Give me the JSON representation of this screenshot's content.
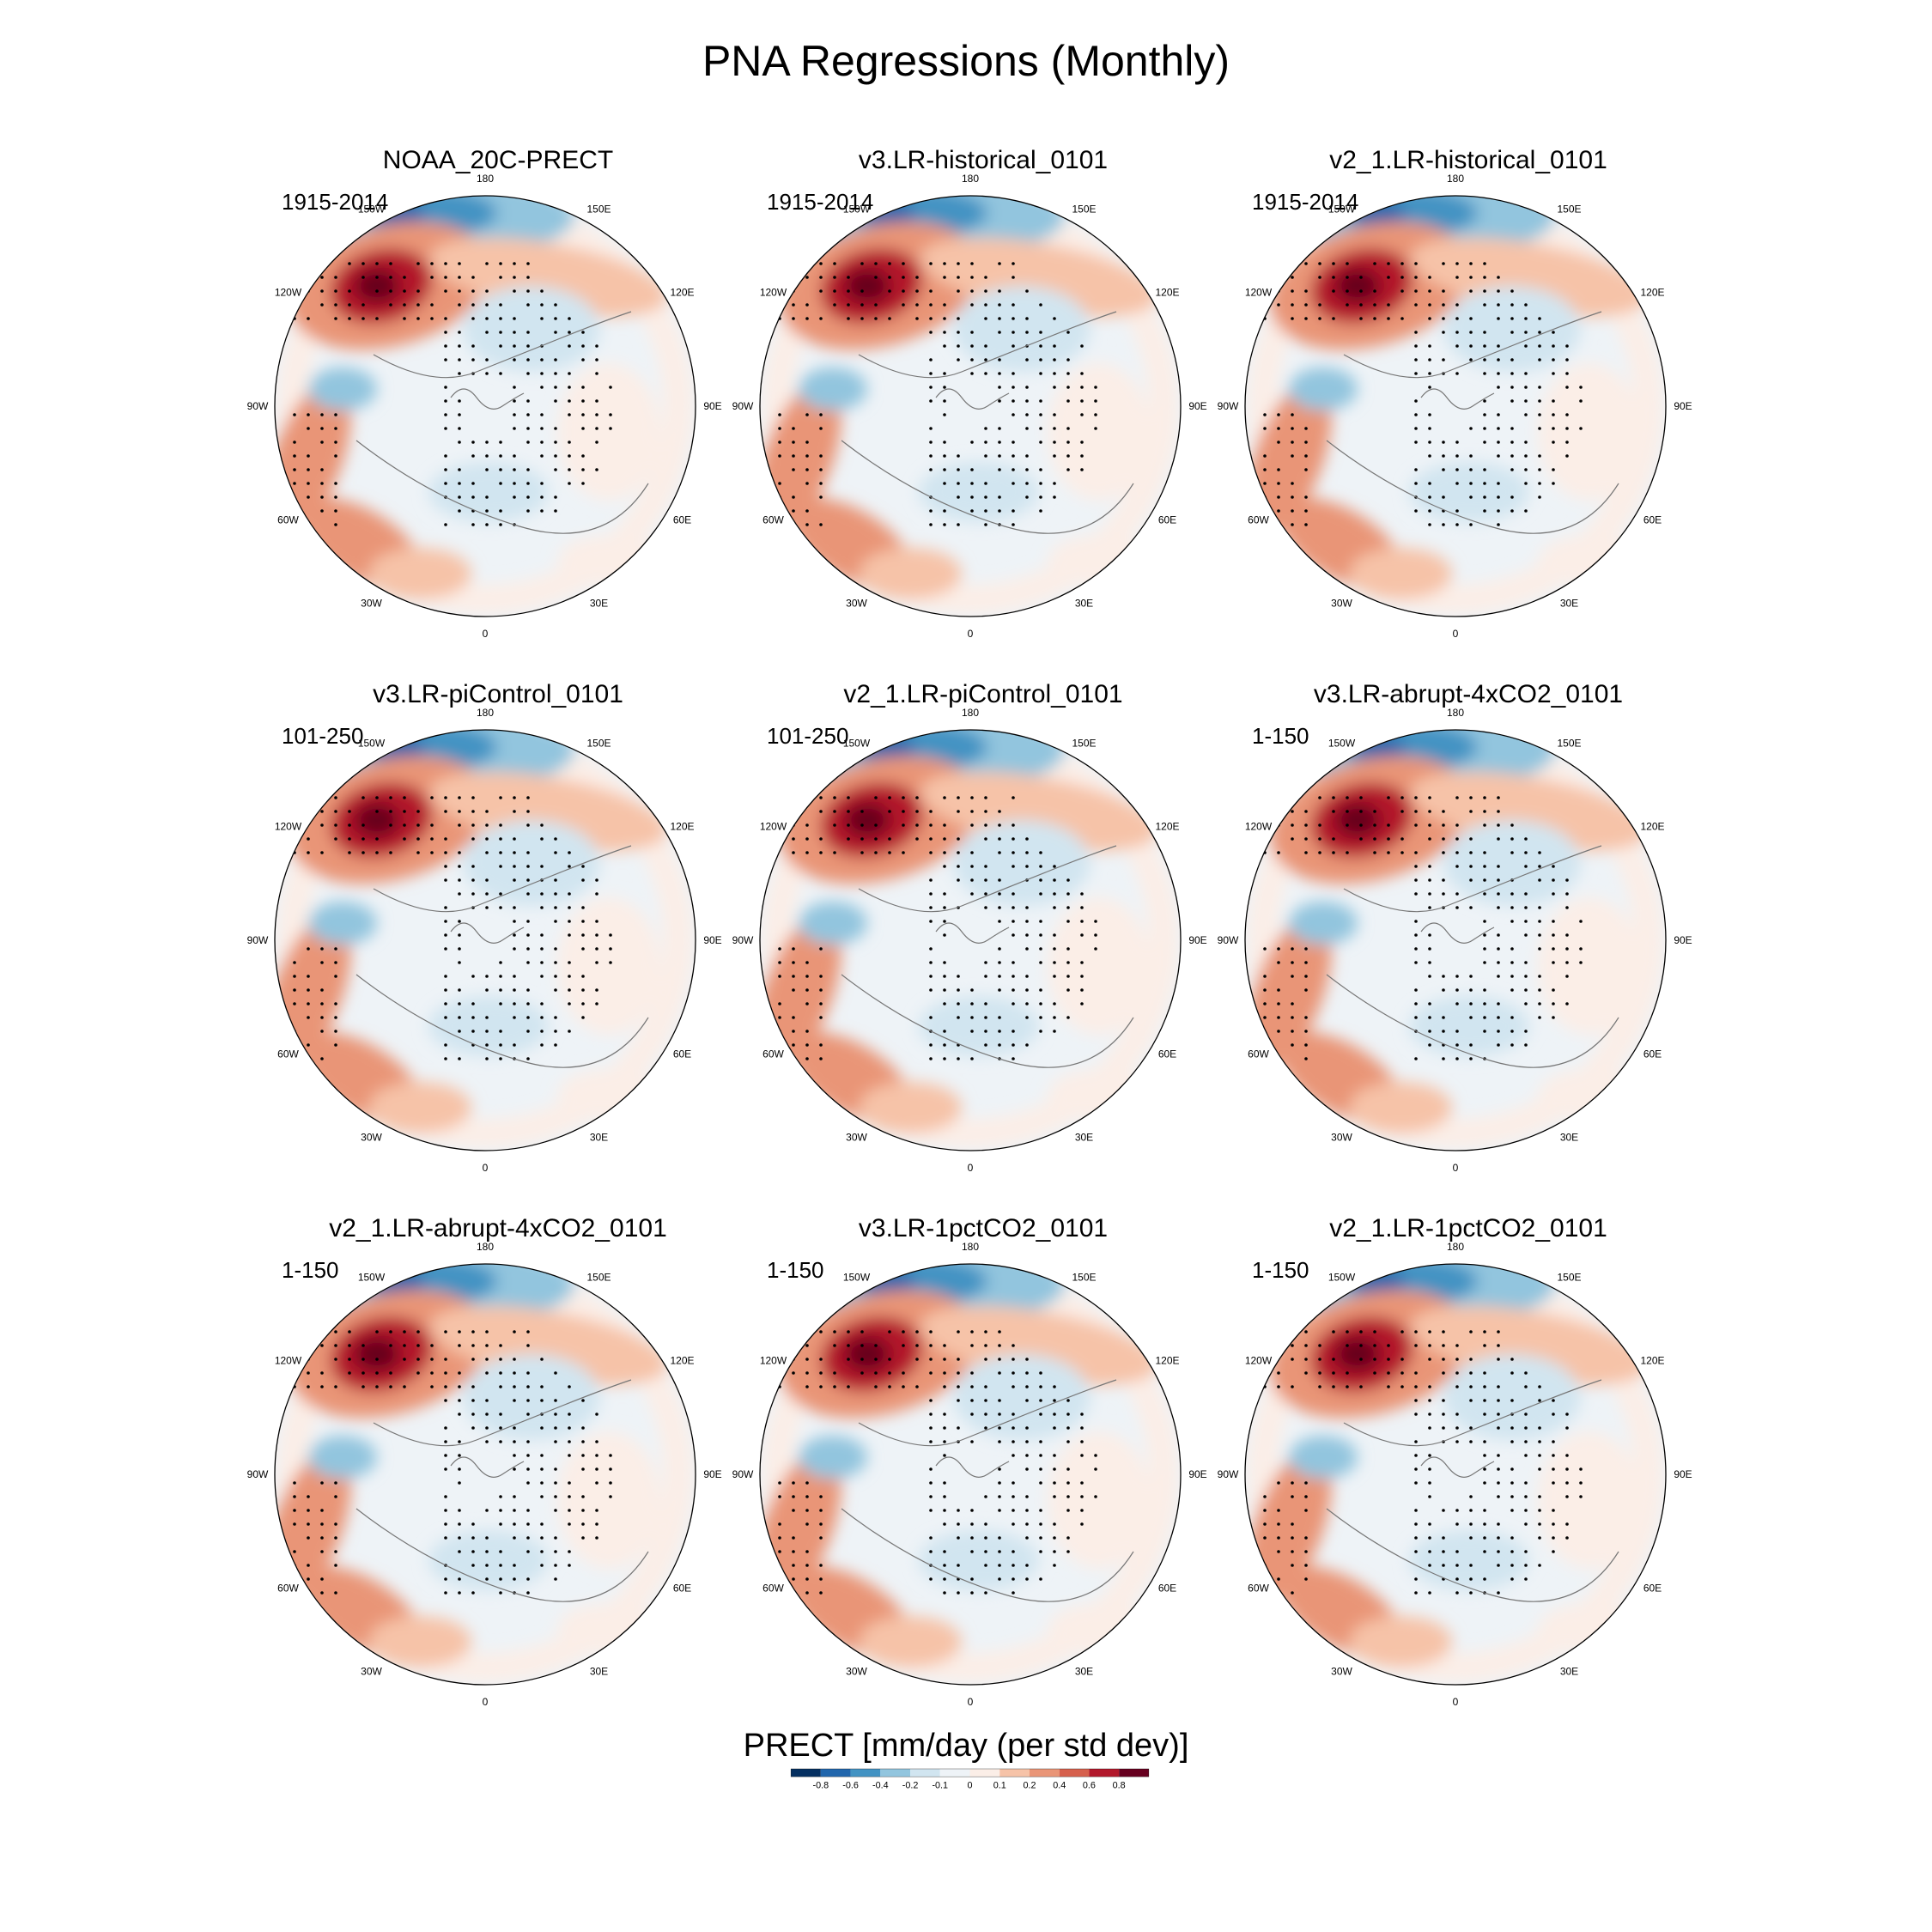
{
  "figure": {
    "title": "PNA Regressions (Monthly)",
    "colorbar_title": "PRECT [mm/day (per std dev)]",
    "colorbar_ticks": [
      "-0.8",
      "-0.6",
      "-0.4",
      "-0.2",
      "-0.1",
      "0",
      "0.1",
      "0.2",
      "0.4",
      "0.6",
      "0.8"
    ],
    "colorbar_colors": [
      "#053061",
      "#2166ac",
      "#4393c3",
      "#92c5de",
      "#d1e5f0",
      "#eef3f7",
      "#fbeee7",
      "#f6c3a8",
      "#e99577",
      "#d6604d",
      "#b2182b",
      "#67001f"
    ],
    "lon_labels": [
      "180",
      "150E",
      "120E",
      "90E",
      "60E",
      "30E",
      "0",
      "30W",
      "60W",
      "90W",
      "120W",
      "150W"
    ]
  },
  "panels": [
    {
      "title": "NOAA_20C-PRECT",
      "period": "1915-2014"
    },
    {
      "title": "v3.LR-historical_0101",
      "period": "1915-2014"
    },
    {
      "title": "v2_1.LR-historical_0101",
      "period": "1915-2014"
    },
    {
      "title": "v3.LR-piControl_0101",
      "period": "101-250"
    },
    {
      "title": "v2_1.LR-piControl_0101",
      "period": "101-250"
    },
    {
      "title": "v3.LR-abrupt-4xCO2_0101",
      "period": "1-150"
    },
    {
      "title": "v2_1.LR-abrupt-4xCO2_0101",
      "period": "1-150"
    },
    {
      "title": "v3.LR-1pctCO2_0101",
      "period": "1-150"
    },
    {
      "title": "v2_1.LR-1pctCO2_0101",
      "period": "1-150"
    }
  ]
}
